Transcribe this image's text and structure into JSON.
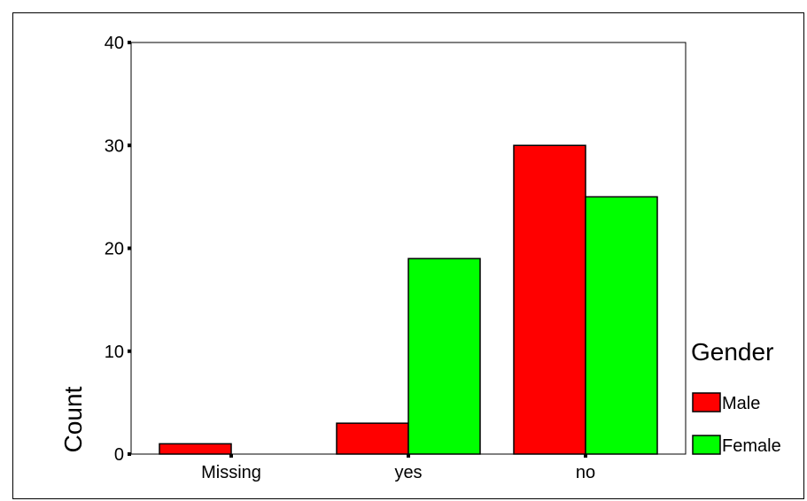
{
  "chart_data": {
    "type": "bar",
    "categories": [
      "Missing",
      "yes",
      "no"
    ],
    "series": [
      {
        "name": "Male",
        "values": [
          1,
          3,
          30
        ],
        "color": "#ff0000"
      },
      {
        "name": "Female",
        "values": [
          0,
          19,
          25
        ],
        "color": "#00ff00"
      }
    ],
    "ylabel": "Count",
    "xlabel": "",
    "ylim": [
      0,
      40
    ],
    "yticks": [
      0,
      10,
      20,
      30,
      40
    ],
    "legend": {
      "title": "Gender",
      "placement": "right"
    },
    "grid": false
  }
}
